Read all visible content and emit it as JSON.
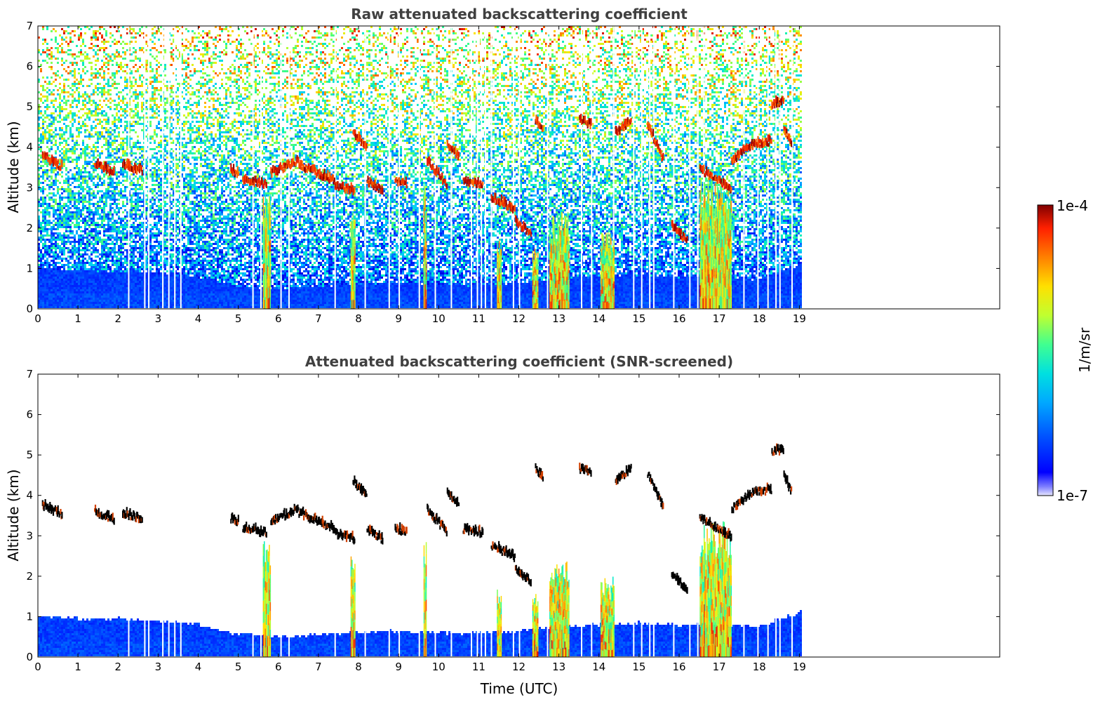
{
  "chart_data": [
    {
      "type": "heatmap",
      "title": "Raw attenuated backscattering coefficient",
      "xlabel": "",
      "ylabel": "Altitude (km)",
      "xlim": [
        0,
        24
      ],
      "ylim": [
        0,
        7
      ],
      "x_ticks": [
        "0",
        "1",
        "2",
        "3",
        "4",
        "5",
        "6",
        "7",
        "8",
        "9",
        "10",
        "11",
        "12",
        "13",
        "14",
        "15",
        "16",
        "17",
        "18",
        "19"
      ],
      "y_ticks": [
        "0",
        "1",
        "2",
        "3",
        "4",
        "5",
        "6",
        "7"
      ],
      "data_extent_x": [
        0,
        19.1
      ],
      "screened": false
    },
    {
      "type": "heatmap",
      "title": "Attenuated backscattering coefficient (SNR-screened)",
      "xlabel": "Time (UTC)",
      "ylabel": "Altitude (km)",
      "xlim": [
        0,
        24
      ],
      "ylim": [
        0,
        7
      ],
      "x_ticks": [
        "0",
        "1",
        "2",
        "3",
        "4",
        "5",
        "6",
        "7",
        "8",
        "9",
        "10",
        "11",
        "12",
        "13",
        "14",
        "15",
        "16",
        "17",
        "18",
        "19"
      ],
      "y_ticks": [
        "0",
        "1",
        "2",
        "3",
        "4",
        "5",
        "6",
        "7"
      ],
      "data_extent_x": [
        0,
        19.1
      ],
      "screened": true
    }
  ],
  "colorbar": {
    "max_label": "1e-4",
    "min_label": "1e-7",
    "label": "1/m/sr",
    "colormap": "jet"
  },
  "features": {
    "cloud_layers": [
      {
        "t": [
          0.1,
          0.6
        ],
        "h": [
          3.7,
          3.45
        ]
      },
      {
        "t": [
          1.4,
          1.9
        ],
        "h": [
          3.55,
          3.3
        ]
      },
      {
        "t": [
          2.1,
          2.6
        ],
        "h": [
          3.5,
          3.35
        ]
      },
      {
        "t": [
          4.8,
          5.0
        ],
        "h": [
          3.35,
          3.3
        ]
      },
      {
        "t": [
          5.1,
          5.7
        ],
        "h": [
          3.15,
          3.0
        ]
      },
      {
        "t": [
          5.8,
          6.5
        ],
        "h": [
          3.3,
          3.6
        ]
      },
      {
        "t": [
          6.5,
          7.4
        ],
        "h": [
          3.5,
          3.1
        ]
      },
      {
        "t": [
          7.4,
          7.9
        ],
        "h": [
          3.0,
          2.85
        ]
      },
      {
        "t": [
          7.85,
          8.2
        ],
        "h": [
          4.3,
          3.9
        ]
      },
      {
        "t": [
          8.2,
          8.6
        ],
        "h": [
          3.1,
          2.85
        ]
      },
      {
        "t": [
          8.9,
          9.2
        ],
        "h": [
          3.1,
          3.05
        ]
      },
      {
        "t": [
          9.7,
          10.2
        ],
        "h": [
          3.6,
          3.0
        ]
      },
      {
        "t": [
          10.2,
          10.5
        ],
        "h": [
          4.0,
          3.7
        ]
      },
      {
        "t": [
          10.6,
          11.1
        ],
        "h": [
          3.1,
          3.0
        ]
      },
      {
        "t": [
          11.3,
          11.9
        ],
        "h": [
          2.7,
          2.4
        ]
      },
      {
        "t": [
          11.9,
          12.3
        ],
        "h": [
          2.1,
          1.8
        ]
      },
      {
        "t": [
          12.4,
          12.6
        ],
        "h": [
          4.6,
          4.4
        ]
      },
      {
        "t": [
          13.5,
          13.8
        ],
        "h": [
          4.6,
          4.5
        ]
      },
      {
        "t": [
          14.4,
          14.8
        ],
        "h": [
          4.3,
          4.6
        ]
      },
      {
        "t": [
          15.2,
          15.6
        ],
        "h": [
          4.5,
          3.6
        ]
      },
      {
        "t": [
          15.8,
          16.2
        ],
        "h": [
          2.0,
          1.6
        ]
      },
      {
        "t": [
          16.5,
          17.3
        ],
        "h": [
          3.4,
          2.9
        ]
      },
      {
        "t": [
          17.3,
          17.8
        ],
        "h": [
          3.6,
          4.0
        ]
      },
      {
        "t": [
          17.8,
          18.3
        ],
        "h": [
          4.0,
          4.1
        ]
      },
      {
        "t": [
          18.3,
          18.6
        ],
        "h": [
          5.0,
          5.1
        ]
      },
      {
        "t": [
          18.6,
          18.8
        ],
        "h": [
          4.4,
          4.0
        ]
      }
    ],
    "precip_columns": [
      {
        "t": 5.7,
        "top": 2.8,
        "w": 0.2
      },
      {
        "t": 7.85,
        "top": 2.7,
        "w": 0.12
      },
      {
        "t": 9.65,
        "top": 3.0,
        "w": 0.08
      },
      {
        "t": 11.5,
        "top": 1.7,
        "w": 0.12
      },
      {
        "t": 12.4,
        "top": 1.5,
        "w": 0.15
      },
      {
        "t": 13.0,
        "top": 2.3,
        "w": 0.5
      },
      {
        "t": 14.2,
        "top": 1.9,
        "w": 0.35
      },
      {
        "t": 16.9,
        "top": 3.2,
        "w": 0.8
      }
    ],
    "boundary_layer_km": [
      [
        0,
        1.0
      ],
      [
        1,
        0.95
      ],
      [
        2,
        0.95
      ],
      [
        3,
        0.9
      ],
      [
        4,
        0.8
      ],
      [
        5,
        0.55
      ],
      [
        6,
        0.5
      ],
      [
        7,
        0.55
      ],
      [
        8,
        0.6
      ],
      [
        9,
        0.65
      ],
      [
        10,
        0.6
      ],
      [
        11,
        0.6
      ],
      [
        12,
        0.65
      ],
      [
        13,
        0.75
      ],
      [
        14,
        0.8
      ],
      [
        15,
        0.85
      ],
      [
        16,
        0.8
      ],
      [
        17,
        0.8
      ],
      [
        18,
        0.75
      ],
      [
        19,
        1.1
      ]
    ]
  }
}
